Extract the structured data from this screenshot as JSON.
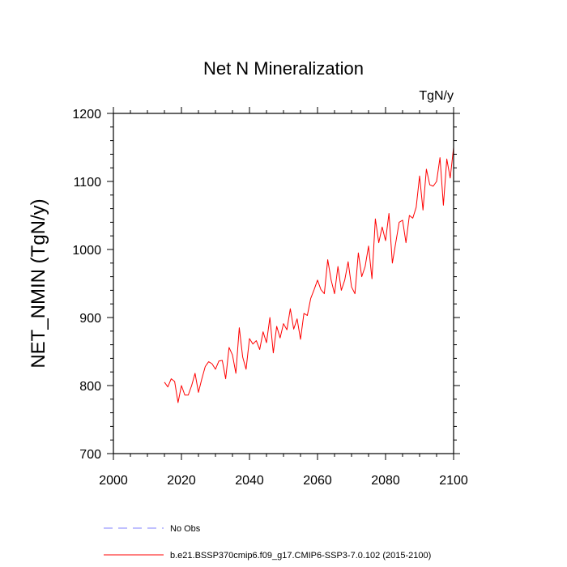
{
  "chart_data": {
    "type": "line",
    "title": "Net N Mineralization",
    "units_label": "TgN/y",
    "ylabel": "NET_NMIN  (TgN/y)",
    "xlabel": "",
    "xlim": [
      2000,
      2100
    ],
    "ylim": [
      700,
      1200
    ],
    "x_ticks": [
      2000,
      2020,
      2040,
      2060,
      2080,
      2100
    ],
    "y_ticks": [
      700,
      800,
      900,
      1000,
      1100,
      1200
    ],
    "grid": false,
    "legend_position": "bottom",
    "series": [
      {
        "name": "b.e21.BSSP370cmip6.f09_g17.CMIP6-SSP3-7.0.102 (2015-2100)",
        "color": "#ff0000",
        "style": "solid",
        "x": [
          2015,
          2016,
          2017,
          2018,
          2019,
          2020,
          2021,
          2022,
          2023,
          2024,
          2025,
          2026,
          2027,
          2028,
          2029,
          2030,
          2031,
          2032,
          2033,
          2034,
          2035,
          2036,
          2037,
          2038,
          2039,
          2040,
          2041,
          2042,
          2043,
          2044,
          2045,
          2046,
          2047,
          2048,
          2049,
          2050,
          2051,
          2052,
          2053,
          2054,
          2055,
          2056,
          2057,
          2058,
          2059,
          2060,
          2061,
          2062,
          2063,
          2064,
          2065,
          2066,
          2067,
          2068,
          2069,
          2070,
          2071,
          2072,
          2073,
          2074,
          2075,
          2076,
          2077,
          2078,
          2079,
          2080,
          2081,
          2082,
          2083,
          2084,
          2085,
          2086,
          2087,
          2088,
          2089,
          2090,
          2091,
          2092,
          2093,
          2094,
          2095,
          2096,
          2097,
          2098,
          2099,
          2100
        ],
        "values": [
          805,
          798,
          810,
          806,
          775,
          800,
          786,
          786,
          800,
          818,
          790,
          810,
          828,
          835,
          832,
          824,
          836,
          837,
          810,
          856,
          845,
          818,
          885,
          842,
          824,
          869,
          861,
          866,
          853,
          879,
          863,
          900,
          848,
          887,
          870,
          891,
          882,
          913,
          883,
          898,
          868,
          906,
          903,
          928,
          941,
          955,
          941,
          935,
          985,
          955,
          935,
          975,
          940,
          955,
          982,
          945,
          935,
          995,
          960,
          975,
          1005,
          957,
          1045,
          1010,
          1033,
          1013,
          1053,
          980,
          1010,
          1040,
          1043,
          1010,
          1050,
          1046,
          1062,
          1108,
          1058,
          1118,
          1095,
          1093,
          1100,
          1135,
          1065,
          1133,
          1105,
          1150
        ]
      },
      {
        "name": "No Obs",
        "color": "#8080ff",
        "style": "dashed",
        "x": [],
        "values": []
      }
    ]
  }
}
